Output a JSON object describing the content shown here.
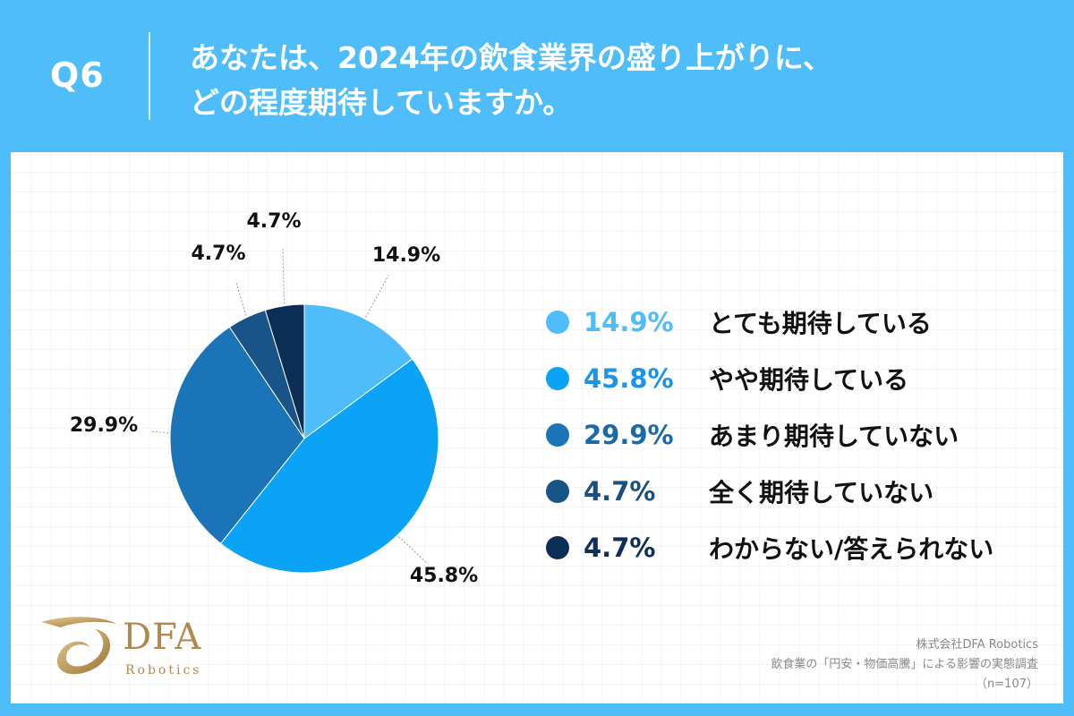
{
  "header": {
    "question_number": "Q6",
    "question_line1": "あなたは、2024年の飲食業界の盛り上がりに、",
    "question_line2": "どの程度期待していますか。"
  },
  "chart_data": {
    "type": "pie",
    "title": "あなたは、2024年の飲食業界の盛り上がりに、どの程度期待していますか。",
    "slices": [
      {
        "label": "とても期待している",
        "value": 14.9,
        "display": "14.9%",
        "color": "#4fbdfa"
      },
      {
        "label": "やや期待している",
        "value": 45.8,
        "display": "45.8%",
        "color": "#0aa3f5"
      },
      {
        "label": "あまり期待していない",
        "value": 29.9,
        "display": "29.9%",
        "color": "#1b74b8"
      },
      {
        "label": "全く期待していない",
        "value": 4.7,
        "display": "4.7%",
        "color": "#185487"
      },
      {
        "label": "わからない/答えられない",
        "value": 4.7,
        "display": "4.7%",
        "color": "#0b2e56"
      }
    ],
    "legend_position": "right"
  },
  "legend_text_colors": [
    "#4fbdfa",
    "#1f93e6",
    "#1c69aa",
    "#1b4f80",
    "#0e2f58"
  ],
  "logo": {
    "name": "DFA",
    "sub": "Robotics"
  },
  "source": {
    "company": "株式会社DFA Robotics",
    "survey": "飲食業の「円安・物価高騰」による影響の実態調査",
    "sample": "（n=107）"
  }
}
